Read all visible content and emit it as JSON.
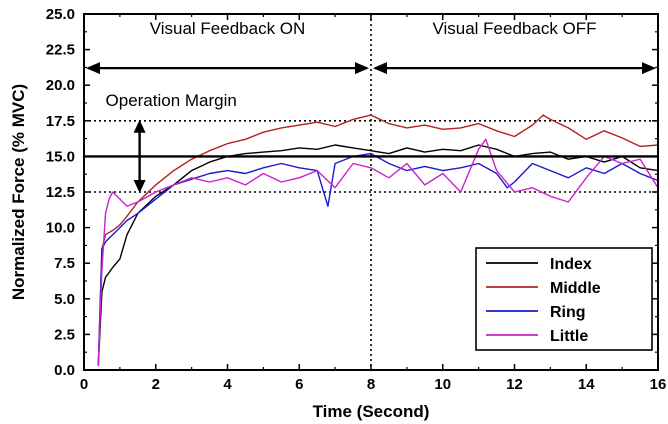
{
  "chart_data": {
    "type": "line",
    "xlabel": "Time (Second)",
    "ylabel": "Normalized Force (% MVC)",
    "xlim": [
      0,
      16
    ],
    "ylim": [
      0,
      25
    ],
    "x_ticks": [
      "0",
      "2",
      "4",
      "6",
      "8",
      "10",
      "12",
      "14",
      "16"
    ],
    "y_ticks": [
      "0.0",
      "2.5",
      "5.0",
      "7.5",
      "10.0",
      "12.5",
      "15.0",
      "17.5",
      "20.0",
      "22.5",
      "25.0"
    ],
    "grid": false,
    "legend_position": "bottom-right",
    "annotations": {
      "phase_on": "Visual Feedback ON",
      "phase_off": "Visual Feedback OFF",
      "margin_label": "Operation Margin",
      "phase_divider_x": 8,
      "target_y": 15,
      "margin_upper_y": 17.5,
      "margin_lower_y": 12.5,
      "phase_arrow_y": 21.2
    },
    "series": [
      {
        "name": "Index",
        "color": "#000000",
        "x": [
          0.4,
          0.5,
          0.6,
          0.8,
          1.0,
          1.2,
          1.5,
          2.0,
          2.5,
          3.0,
          3.5,
          4.0,
          4.5,
          5.0,
          5.5,
          6.0,
          6.5,
          7.0,
          7.5,
          8.0,
          8.5,
          9.0,
          9.5,
          10.0,
          10.5,
          11.0,
          11.5,
          12.0,
          12.5,
          13.0,
          13.5,
          14.0,
          14.5,
          15.0,
          15.5,
          16.0
        ],
        "y": [
          0.3,
          5.5,
          6.5,
          7.2,
          7.8,
          9.5,
          11.0,
          12.2,
          13.0,
          14.0,
          14.6,
          15.0,
          15.2,
          15.3,
          15.4,
          15.6,
          15.5,
          15.8,
          15.6,
          15.4,
          15.2,
          15.6,
          15.3,
          15.5,
          15.4,
          15.8,
          15.5,
          15.0,
          15.2,
          15.3,
          14.8,
          15.0,
          14.6,
          15.0,
          14.2,
          14.0
        ]
      },
      {
        "name": "Middle",
        "color": "#b22222",
        "x": [
          0.4,
          0.5,
          0.6,
          0.8,
          1.0,
          1.2,
          1.5,
          2.0,
          2.5,
          3.0,
          3.5,
          4.0,
          4.5,
          5.0,
          5.5,
          6.0,
          6.5,
          7.0,
          7.5,
          8.0,
          8.5,
          9.0,
          9.5,
          10.0,
          10.5,
          11.0,
          11.5,
          12.0,
          12.5,
          12.8,
          13.0,
          13.5,
          14.0,
          14.5,
          15.0,
          15.5,
          16.0
        ],
        "y": [
          0.3,
          8.5,
          9.5,
          9.8,
          10.2,
          10.8,
          11.8,
          13.0,
          14.0,
          14.8,
          15.4,
          15.9,
          16.2,
          16.7,
          17.0,
          17.2,
          17.4,
          17.1,
          17.6,
          17.9,
          17.3,
          17.0,
          17.2,
          16.9,
          17.0,
          17.3,
          16.8,
          16.4,
          17.2,
          17.9,
          17.6,
          17.0,
          16.2,
          16.8,
          16.3,
          15.7,
          15.8
        ]
      },
      {
        "name": "Ring",
        "color": "#1a1acc",
        "x": [
          0.4,
          0.5,
          0.6,
          0.8,
          1.0,
          1.2,
          1.5,
          2.0,
          2.5,
          3.0,
          3.5,
          4.0,
          4.5,
          5.0,
          5.5,
          6.0,
          6.5,
          6.8,
          7.0,
          7.5,
          8.0,
          8.5,
          9.0,
          9.5,
          10.0,
          10.5,
          11.0,
          11.5,
          11.8,
          12.0,
          12.5,
          13.0,
          13.5,
          14.0,
          14.5,
          15.0,
          15.5,
          16.0
        ],
        "y": [
          0.3,
          8.5,
          9.0,
          9.5,
          10.0,
          10.5,
          11.0,
          12.0,
          13.0,
          13.4,
          13.8,
          14.0,
          13.8,
          14.2,
          14.5,
          14.2,
          14.0,
          11.5,
          14.5,
          15.0,
          15.2,
          14.5,
          14.0,
          14.3,
          14.0,
          14.2,
          14.5,
          13.8,
          12.8,
          13.2,
          14.5,
          14.0,
          13.5,
          14.2,
          13.8,
          14.5,
          13.8,
          13.3
        ]
      },
      {
        "name": "Little",
        "color": "#cc22cc",
        "x": [
          0.4,
          0.5,
          0.6,
          0.7,
          0.8,
          1.0,
          1.2,
          1.5,
          2.0,
          2.5,
          3.0,
          3.5,
          4.0,
          4.5,
          5.0,
          5.5,
          6.0,
          6.5,
          7.0,
          7.5,
          8.0,
          8.5,
          9.0,
          9.5,
          10.0,
          10.5,
          11.0,
          11.2,
          11.5,
          12.0,
          12.5,
          13.0,
          13.5,
          14.0,
          14.5,
          15.0,
          15.5,
          16.0
        ],
        "y": [
          0.3,
          7.0,
          11.0,
          12.0,
          12.5,
          12.0,
          11.5,
          11.8,
          12.5,
          13.0,
          13.5,
          13.2,
          13.5,
          13.0,
          13.8,
          13.2,
          13.5,
          14.0,
          12.8,
          14.5,
          14.2,
          13.5,
          14.5,
          13.0,
          13.8,
          12.5,
          15.5,
          16.2,
          14.0,
          12.5,
          12.8,
          12.2,
          11.8,
          13.5,
          15.0,
          14.5,
          14.8,
          12.8
        ]
      }
    ]
  }
}
